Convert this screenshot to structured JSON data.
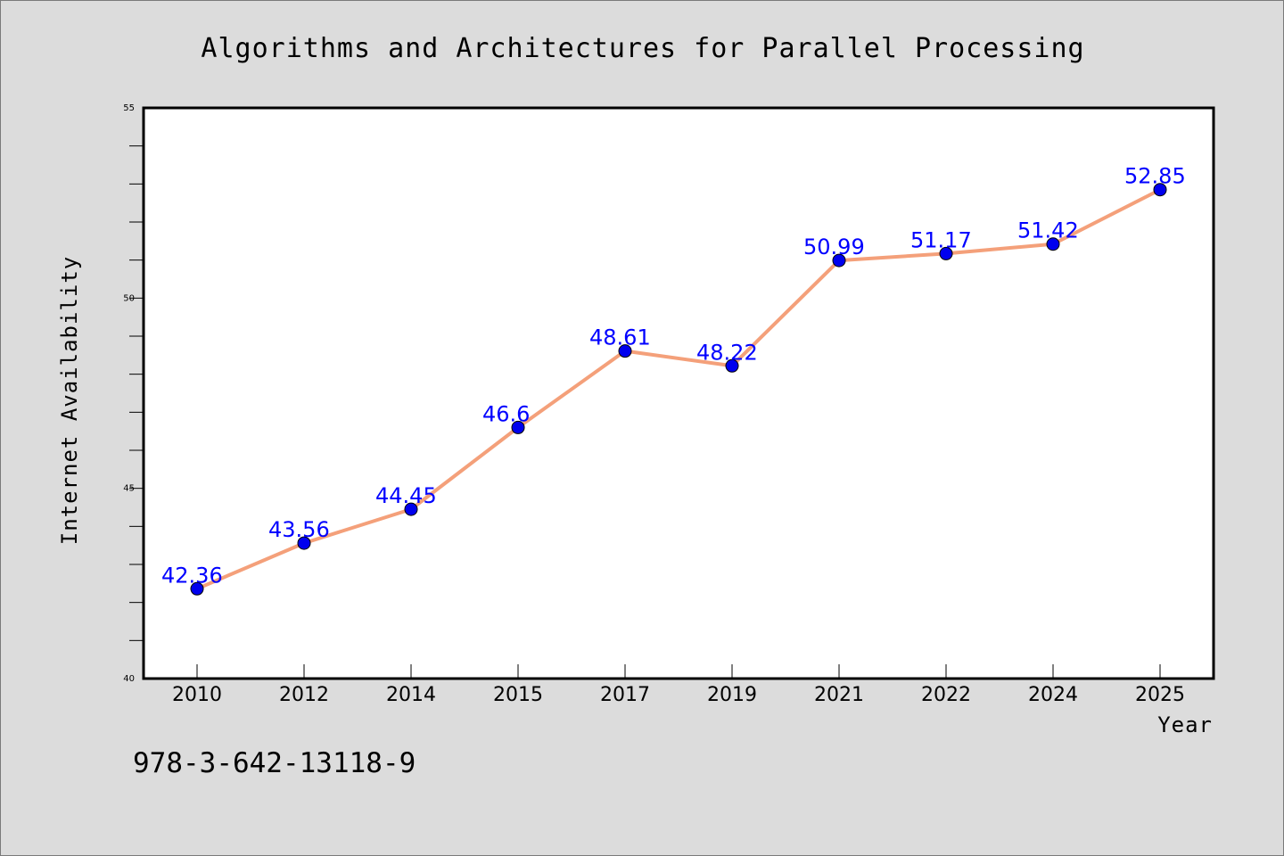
{
  "chart_data": {
    "type": "line",
    "title": "Algorithms and Architectures for Parallel Processing",
    "xlabel": "Year",
    "ylabel": "Internet Availability",
    "categories": [
      "2010",
      "2012",
      "2014",
      "2015",
      "2017",
      "2019",
      "2021",
      "2022",
      "2024",
      "2025"
    ],
    "series": [
      {
        "values": [
          42.36,
          43.56,
          44.45,
          46.6,
          48.61,
          48.22,
          50.99,
          51.17,
          51.42,
          52.85
        ],
        "line_color": "#f4a07a",
        "marker_color": "#0000ee",
        "label_color": "#0000ff"
      }
    ],
    "data_labels": [
      "42.36",
      "43.56",
      "44.45",
      "46.6",
      "48.61",
      "48.22",
      "50.99",
      "51.17",
      "51.42",
      "52.85"
    ],
    "ylim": [
      40,
      55
    ],
    "yticks": [
      "40",
      "45",
      "50",
      "55"
    ],
    "grid": false,
    "legend": "none"
  },
  "footer": {
    "isbn": "978-3-642-13118-9"
  },
  "colors": {
    "background": "#dcdcdc",
    "plot_area": "#ffffff",
    "axis": "#000000"
  }
}
